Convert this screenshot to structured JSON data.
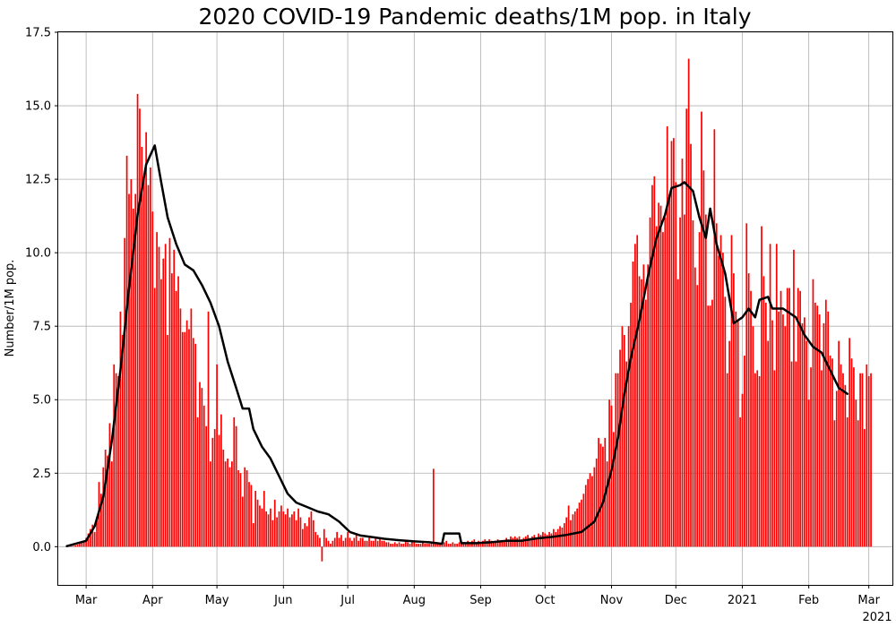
{
  "chart_data": {
    "type": "bar",
    "title": "2020 COVID-19 Pandemic deaths/1M pop. in Italy",
    "xlabel": "",
    "ylabel": "Number/1M pop.",
    "ylim": [
      -1.3,
      17.5
    ],
    "xlim": [
      "2020-02-17",
      "2021-03-12"
    ],
    "grid": true,
    "colors": {
      "bars": "#ff0000",
      "line": "#000000",
      "grid": "#b0b0b0"
    },
    "y_ticks": [
      "0.0",
      "2.5",
      "5.0",
      "7.5",
      "10.0",
      "12.5",
      "15.0",
      "17.5"
    ],
    "x_ticks": [
      {
        "date": "2020-03-01",
        "label": "Mar"
      },
      {
        "date": "2020-04-01",
        "label": "Apr"
      },
      {
        "date": "2020-05-01",
        "label": "May"
      },
      {
        "date": "2020-06-01",
        "label": "Jun"
      },
      {
        "date": "2020-07-01",
        "label": "Jul"
      },
      {
        "date": "2020-08-01",
        "label": "Aug"
      },
      {
        "date": "2020-09-01",
        "label": "Sep"
      },
      {
        "date": "2020-10-01",
        "label": "Oct"
      },
      {
        "date": "2020-11-01",
        "label": "Nov"
      },
      {
        "date": "2020-12-01",
        "label": "Dec"
      },
      {
        "date": "2021-01-01",
        "label": "2021"
      },
      {
        "date": "2021-02-01",
        "label": "Feb"
      },
      {
        "date": "2021-03-01",
        "label": "Mar"
      }
    ],
    "x_offset_label": "2021",
    "series": [
      {
        "kind": "bar",
        "start": "2020-02-21",
        "values": [
          0.02,
          0.02,
          0.03,
          0.03,
          0.05,
          0.07,
          0.1,
          0.13,
          0.2,
          0.3,
          0.45,
          0.6,
          0.75,
          0.5,
          1.0,
          2.2,
          1.8,
          2.7,
          3.3,
          3.1,
          4.2,
          2.9,
          6.2,
          5.9,
          5.8,
          8.0,
          7.2,
          10.5,
          13.3,
          12.0,
          12.5,
          11.5,
          12.0,
          15.4,
          14.9,
          13.6,
          12.5,
          14.1,
          12.3,
          12.9,
          11.4,
          8.8,
          10.7,
          10.2,
          9.1,
          9.8,
          10.3,
          7.2,
          10.5,
          9.3,
          10.1,
          8.7,
          9.2,
          8.1,
          7.3,
          7.3,
          7.7,
          7.4,
          8.1,
          7.1,
          6.9,
          4.4,
          5.6,
          5.4,
          4.8,
          4.1,
          8.0,
          2.9,
          3.7,
          4.0,
          6.2,
          3.8,
          4.5,
          3.3,
          2.9,
          3.0,
          2.7,
          2.9,
          4.4,
          4.1,
          2.6,
          2.5,
          1.7,
          2.7,
          2.6,
          2.2,
          2.1,
          0.8,
          1.9,
          1.6,
          1.4,
          1.3,
          1.9,
          1.2,
          1.1,
          1.3,
          0.9,
          1.6,
          1.0,
          1.2,
          1.4,
          1.2,
          1.1,
          1.3,
          1.0,
          1.1,
          1.2,
          0.9,
          1.3,
          1.0,
          0.6,
          0.8,
          0.7,
          1.0,
          1.2,
          0.9,
          0.5,
          0.4,
          0.3,
          -0.5,
          0.6,
          0.3,
          0.2,
          0.1,
          0.2,
          0.3,
          0.5,
          0.3,
          0.4,
          0.2,
          0.3,
          0.5,
          0.3,
          0.2,
          0.3,
          0.4,
          0.2,
          0.3,
          0.3,
          0.2,
          0.2,
          0.3,
          0.2,
          0.2,
          0.3,
          0.2,
          0.3,
          0.2,
          0.2,
          0.15,
          0.15,
          0.1,
          0.1,
          0.15,
          0.1,
          0.15,
          0.1,
          0.1,
          0.2,
          0.15,
          0.1,
          0.15,
          0.2,
          0.1,
          0.1,
          0.1,
          0.15,
          0.1,
          0.1,
          0.1,
          0.1,
          2.65,
          0.1,
          0.1,
          0.1,
          0.1,
          0.15,
          0.2,
          0.1,
          0.1,
          0.15,
          0.1,
          0.1,
          0.15,
          0.1,
          0.15,
          0.1,
          0.2,
          0.1,
          0.2,
          0.25,
          0.15,
          0.2,
          0.15,
          0.2,
          0.25,
          0.2,
          0.25,
          0.2,
          0.15,
          0.2,
          0.25,
          0.2,
          0.2,
          0.2,
          0.3,
          0.25,
          0.35,
          0.3,
          0.35,
          0.3,
          0.35,
          0.25,
          0.3,
          0.35,
          0.4,
          0.3,
          0.35,
          0.4,
          0.3,
          0.45,
          0.4,
          0.5,
          0.45,
          0.4,
          0.5,
          0.45,
          0.6,
          0.5,
          0.6,
          0.7,
          0.65,
          0.8,
          1.0,
          1.4,
          0.9,
          1.1,
          1.2,
          1.3,
          1.5,
          1.6,
          1.8,
          2.1,
          2.3,
          2.5,
          2.4,
          2.7,
          3.0,
          3.7,
          3.5,
          3.4,
          3.7,
          2.9,
          5.0,
          4.8,
          3.9,
          5.9,
          5.9,
          6.7,
          7.5,
          7.2,
          6.3,
          7.5,
          8.3,
          9.7,
          10.3,
          10.6,
          9.2,
          9.1,
          9.6,
          8.4,
          9.6,
          11.2,
          12.3,
          12.6,
          10.9,
          11.7,
          11.6,
          10.7,
          11.2,
          14.3,
          12.0,
          13.8,
          13.9,
          12.4,
          9.1,
          11.2,
          13.2,
          11.3,
          14.9,
          16.6,
          13.7,
          11.1,
          9.5,
          8.9,
          10.7,
          14.8,
          12.8,
          11.3,
          8.2,
          8.2,
          8.4,
          14.2,
          11.0,
          9.9,
          10.6,
          10.0,
          8.5,
          5.9,
          7.0,
          10.6,
          9.3,
          8.0,
          7.7,
          4.4,
          5.2,
          6.5,
          11.0,
          9.3,
          8.7,
          7.5,
          5.9,
          6.0,
          5.8,
          10.9,
          9.2,
          8.3,
          7.0,
          10.3,
          7.7,
          6.0,
          10.3,
          8.0,
          8.7,
          7.9,
          7.5,
          8.8,
          8.8,
          6.3,
          10.1,
          6.3,
          8.8,
          8.7,
          7.6,
          7.8,
          7.0,
          5.0,
          6.1,
          9.1,
          8.3,
          8.2,
          7.9,
          6.0,
          7.6,
          8.4,
          8.0,
          6.5,
          6.4,
          4.3,
          5.3,
          7.0,
          6.2,
          5.9,
          5.5,
          4.4,
          7.1,
          6.4,
          6.1,
          5.0,
          4.3,
          5.9,
          5.9,
          4.0,
          6.2,
          5.8,
          5.9
        ]
      },
      {
        "kind": "line",
        "points": [
          [
            "2020-02-21",
            0.02
          ],
          [
            "2020-03-01",
            0.2
          ],
          [
            "2020-03-05",
            0.7
          ],
          [
            "2020-03-09",
            1.7
          ],
          [
            "2020-03-13",
            3.6
          ],
          [
            "2020-03-17",
            6.0
          ],
          [
            "2020-03-21",
            8.8
          ],
          [
            "2020-03-25",
            11.3
          ],
          [
            "2020-03-29",
            13.0
          ],
          [
            "2020-04-02",
            13.65
          ],
          [
            "2020-04-05",
            12.4
          ],
          [
            "2020-04-08",
            11.2
          ],
          [
            "2020-04-12",
            10.3
          ],
          [
            "2020-04-16",
            9.6
          ],
          [
            "2020-04-20",
            9.4
          ],
          [
            "2020-04-24",
            8.9
          ],
          [
            "2020-04-28",
            8.3
          ],
          [
            "2020-05-02",
            7.5
          ],
          [
            "2020-05-06",
            6.3
          ],
          [
            "2020-05-10",
            5.4
          ],
          [
            "2020-05-13",
            4.7
          ],
          [
            "2020-05-16",
            4.7
          ],
          [
            "2020-05-18",
            4.0
          ],
          [
            "2020-05-22",
            3.4
          ],
          [
            "2020-05-26",
            3.0
          ],
          [
            "2020-05-30",
            2.4
          ],
          [
            "2020-06-03",
            1.8
          ],
          [
            "2020-06-07",
            1.5
          ],
          [
            "2020-06-12",
            1.35
          ],
          [
            "2020-06-17",
            1.2
          ],
          [
            "2020-06-22",
            1.1
          ],
          [
            "2020-06-27",
            0.85
          ],
          [
            "2020-07-02",
            0.5
          ],
          [
            "2020-07-07",
            0.38
          ],
          [
            "2020-07-12",
            0.33
          ],
          [
            "2020-07-18",
            0.27
          ],
          [
            "2020-07-25",
            0.22
          ],
          [
            "2020-08-01",
            0.18
          ],
          [
            "2020-08-08",
            0.15
          ],
          [
            "2020-08-14",
            0.1
          ],
          [
            "2020-08-15",
            0.45
          ],
          [
            "2020-08-22",
            0.45
          ],
          [
            "2020-08-23",
            0.12
          ],
          [
            "2020-08-30",
            0.12
          ],
          [
            "2020-09-06",
            0.15
          ],
          [
            "2020-09-13",
            0.2
          ],
          [
            "2020-09-20",
            0.2
          ],
          [
            "2020-09-27",
            0.28
          ],
          [
            "2020-10-04",
            0.33
          ],
          [
            "2020-10-11",
            0.4
          ],
          [
            "2020-10-18",
            0.5
          ],
          [
            "2020-10-24",
            0.85
          ],
          [
            "2020-10-28",
            1.5
          ],
          [
            "2020-11-01",
            2.6
          ],
          [
            "2020-11-04",
            3.7
          ],
          [
            "2020-11-07",
            5.2
          ],
          [
            "2020-11-10",
            6.4
          ],
          [
            "2020-11-14",
            7.7
          ],
          [
            "2020-11-18",
            9.2
          ],
          [
            "2020-11-22",
            10.5
          ],
          [
            "2020-11-26",
            11.3
          ],
          [
            "2020-11-29",
            12.2
          ],
          [
            "2020-12-03",
            12.3
          ],
          [
            "2020-12-05",
            12.4
          ],
          [
            "2020-12-09",
            12.1
          ],
          [
            "2020-12-12",
            11.2
          ],
          [
            "2020-12-15",
            10.5
          ],
          [
            "2020-12-17",
            11.5
          ],
          [
            "2020-12-20",
            10.3
          ],
          [
            "2020-12-24",
            9.3
          ],
          [
            "2020-12-28",
            7.6
          ],
          [
            "2021-01-01",
            7.8
          ],
          [
            "2021-01-04",
            8.1
          ],
          [
            "2021-01-07",
            7.8
          ],
          [
            "2021-01-09",
            8.4
          ],
          [
            "2021-01-13",
            8.5
          ],
          [
            "2021-01-15",
            8.1
          ],
          [
            "2021-01-20",
            8.1
          ],
          [
            "2021-01-26",
            7.8
          ],
          [
            "2021-01-30",
            7.2
          ],
          [
            "2021-02-03",
            6.8
          ],
          [
            "2021-02-07",
            6.6
          ],
          [
            "2021-02-11",
            6.0
          ],
          [
            "2021-02-15",
            5.4
          ],
          [
            "2021-02-19",
            5.2
          ]
        ]
      }
    ]
  }
}
